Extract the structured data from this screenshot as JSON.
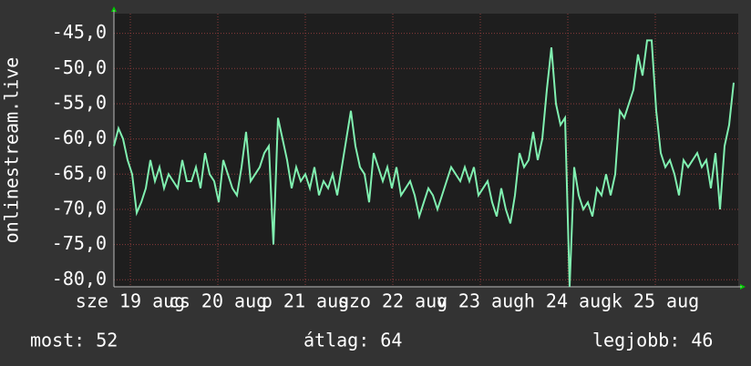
{
  "chart_data": {
    "type": "line",
    "ylabel": "onlinestream.live",
    "xlim": [
      -4.5,
      166.75
    ],
    "xticks": [
      {
        "value": 0,
        "label": "sze 19 aug"
      },
      {
        "value": 24,
        "label": "cs 20 aug"
      },
      {
        "value": 48,
        "label": "p 21 aug"
      },
      {
        "value": 72,
        "label": "szo 22 aug"
      },
      {
        "value": 96,
        "label": "v 23 aug"
      },
      {
        "value": 120,
        "label": "h 24 aug"
      },
      {
        "value": 144,
        "label": "k 25 aug"
      }
    ],
    "ylim": [
      -81,
      -42.2
    ],
    "yticks": [
      {
        "value": -80,
        "label": "-80,0"
      },
      {
        "value": -75,
        "label": "-75,0"
      },
      {
        "value": -70,
        "label": "-70,0"
      },
      {
        "value": -65,
        "label": "-65,0"
      },
      {
        "value": -60,
        "label": "-60,0"
      },
      {
        "value": -55,
        "label": "-55,0"
      },
      {
        "value": -50,
        "label": "-50,0"
      },
      {
        "value": -45,
        "label": "-45,0"
      }
    ],
    "grid": true,
    "x": [
      -4.5,
      -3.25,
      -2,
      -0.75,
      0.5,
      1.75,
      3,
      4.25,
      5.5,
      6.75,
      8,
      9.25,
      10.5,
      11.75,
      13,
      14.25,
      15.5,
      16.75,
      18,
      19.25,
      20.5,
      21.75,
      23,
      24.25,
      25.5,
      26.75,
      28,
      29.25,
      30.5,
      31.75,
      33,
      34.25,
      35.5,
      36.75,
      38,
      39.25,
      40.5,
      41.75,
      43,
      44.25,
      45.5,
      46.75,
      48,
      49.25,
      50.5,
      51.75,
      53,
      54.25,
      55.5,
      56.75,
      58,
      59.25,
      60.5,
      61.75,
      63,
      64.25,
      65.5,
      66.75,
      68,
      69.25,
      70.5,
      71.75,
      73,
      74.25,
      75.5,
      76.75,
      78,
      79.25,
      80.5,
      81.75,
      83,
      84.25,
      85.5,
      86.75,
      88,
      89.25,
      90.5,
      91.75,
      93,
      94.25,
      95.5,
      96.75,
      98,
      99.25,
      100.5,
      101.75,
      103,
      104.25,
      105.5,
      106.75,
      108,
      109.25,
      110.5,
      111.75,
      113,
      114.25,
      115.5,
      116.75,
      118,
      119.25,
      120.5,
      121.75,
      123,
      124.25,
      125.5,
      126.75,
      128,
      129.25,
      130.5,
      131.75,
      133,
      134.25,
      135.5,
      136.75,
      138,
      139.25,
      140.5,
      141.75,
      143,
      144.25,
      145.5,
      146.75,
      148,
      149.25,
      150.5,
      151.75,
      153,
      154.25,
      155.5,
      156.75,
      158,
      159.25,
      160.5,
      161.75,
      163,
      164.25,
      165.5
    ],
    "series": [
      {
        "color": "#80f0b0",
        "values": [
          -61,
          -58.5,
          -60,
          -63,
          -65,
          -70.5,
          -69,
          -67,
          -63,
          -66,
          -64,
          -67,
          -65,
          -66,
          -67,
          -63,
          -66,
          -66,
          -64,
          -67,
          -62,
          -65,
          -66,
          -69,
          -63,
          -65,
          -67,
          -68,
          -64,
          -59,
          -66,
          -65,
          -64,
          -62,
          -61,
          -75,
          -57,
          -60,
          -63,
          -67,
          -64,
          -66,
          -65,
          -67,
          -64,
          -68,
          -66,
          -67,
          -65,
          -68,
          -64,
          -60,
          -56,
          -61,
          -64,
          -65,
          -69,
          -62,
          -64,
          -66,
          -64,
          -67,
          -64,
          -68,
          -67,
          -66,
          -68,
          -71,
          -69,
          -67,
          -68,
          -70,
          -68,
          -66,
          -64,
          -65,
          -66,
          -64,
          -66,
          -64,
          -68,
          -67,
          -66,
          -69,
          -71,
          -67,
          -70,
          -72,
          -68,
          -62,
          -64,
          -63,
          -59,
          -63,
          -60,
          -53,
          -47,
          -55,
          -58,
          -57,
          -81,
          -64,
          -68,
          -70,
          -69,
          -71,
          -67,
          -68,
          -65,
          -68,
          -65,
          -56,
          -57,
          -55,
          -53,
          -48,
          -51,
          -46,
          -46,
          -56,
          -62,
          -64,
          -63,
          -65,
          -68,
          -63,
          -64,
          -63,
          -62,
          -64,
          -63,
          -67,
          -62,
          -70,
          -61,
          -58,
          -52
        ]
      }
    ],
    "stats": [
      "most: 52",
      "átlag: 64",
      "legjobb: 46"
    ]
  }
}
